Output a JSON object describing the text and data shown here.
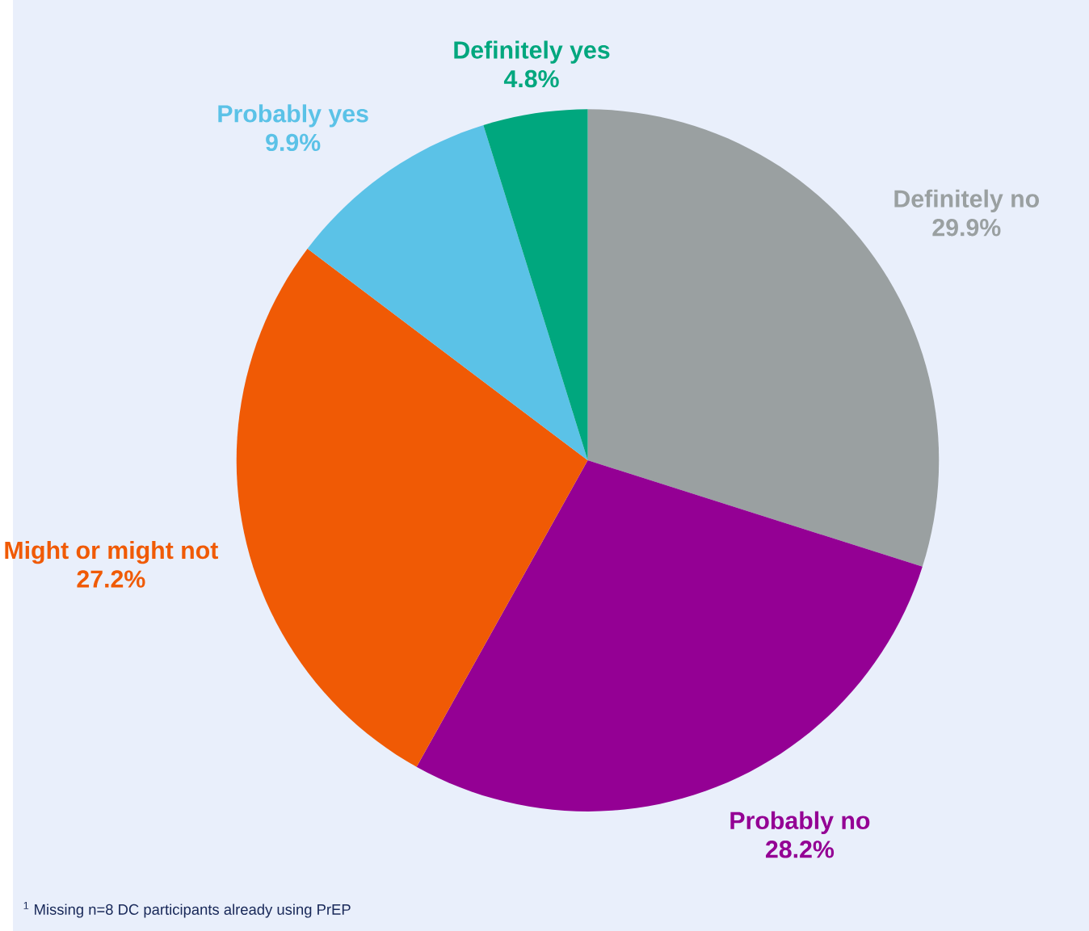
{
  "chart_data": {
    "type": "pie",
    "categories": [
      "Definitely no",
      "Probably no",
      "Might or might not",
      "Probably yes",
      "Definitely yes"
    ],
    "values": [
      29.9,
      28.2,
      27.2,
      9.9,
      4.8
    ],
    "value_labels": [
      "29.9%",
      "28.2%",
      "27.2%",
      "9.9%",
      "4.8%"
    ],
    "colors": [
      "#9aa0a1",
      "#940094",
      "#f05a05",
      "#5bc2e7",
      "#00a77e"
    ],
    "annotations": [
      "$^{1}$ Missing n=8 DC participants already using PrEP"
    ]
  }
}
